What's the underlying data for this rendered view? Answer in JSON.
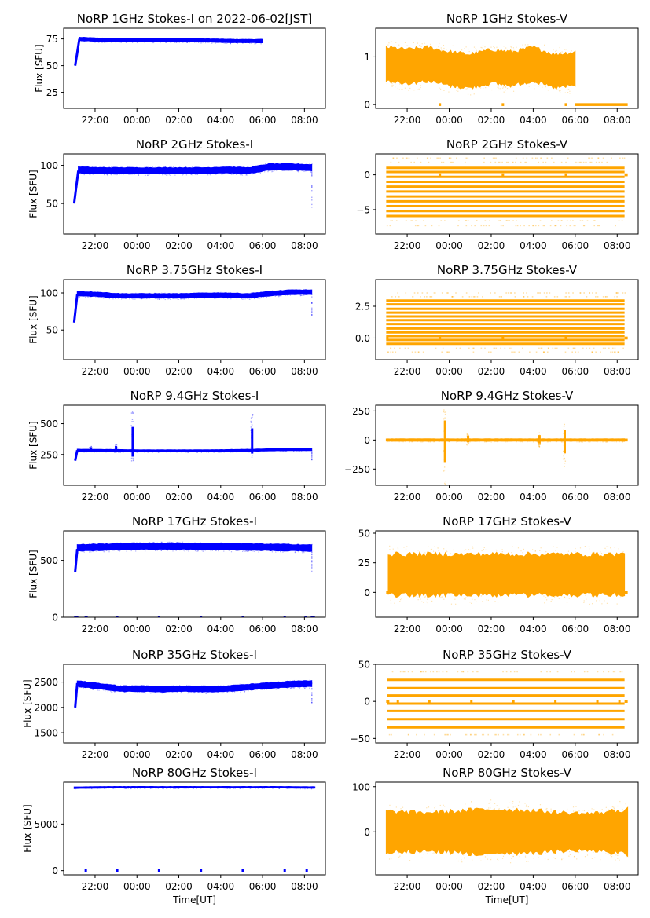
{
  "chart_data": [
    {
      "type": "scatter",
      "id": "p1i",
      "column": "left",
      "row": 1,
      "title": "NoRP 1GHz Stokes-I on 2022-06-02[JST]",
      "ylabel": "Flux [SFU]",
      "xlabel": "",
      "color": "#0000ff",
      "xlim": [
        -3.5,
        9.0
      ],
      "ylim": [
        10,
        85
      ],
      "xticks": [
        -2,
        0,
        2,
        4,
        6,
        8
      ],
      "xtick_labels": [
        "22:00",
        "00:00",
        "02:00",
        "04:00",
        "06:00",
        "08:00"
      ],
      "yticks": [
        25,
        50,
        75
      ],
      "ytick_labels": [
        "25",
        "50",
        "75"
      ],
      "rise": {
        "x": [
          -2.95,
          -2.75
        ],
        "y": [
          50,
          75
        ]
      },
      "band": {
        "x": [
          -2.75,
          6.0
        ],
        "center": [
          75,
          74,
          74,
          74,
          74,
          73.5,
          73,
          73
        ],
        "halfwidth": 1.5
      },
      "outliers": [],
      "zero_marks": []
    },
    {
      "type": "scatter",
      "id": "p1v",
      "column": "right",
      "row": 1,
      "title": "NoRP 1GHz Stokes-V",
      "ylabel": "",
      "xlabel": "",
      "color": "#ffa500",
      "xlim": [
        -3.5,
        9.0
      ],
      "ylim": [
        -0.08,
        1.6
      ],
      "xticks": [
        -2,
        0,
        2,
        4,
        6,
        8
      ],
      "xtick_labels": [
        "22:00",
        "00:00",
        "02:00",
        "04:00",
        "06:00",
        "08:00"
      ],
      "yticks": [
        0,
        1
      ],
      "ytick_labels": [
        "0",
        "1"
      ],
      "band": {
        "x": [
          -3.0,
          6.0
        ],
        "center": [
          0.85,
          0.8,
          0.85,
          0.75,
          0.7,
          0.8,
          0.75,
          0.85,
          0.7,
          0.75
        ],
        "halfwidth": 0.35
      },
      "zero_marks": [
        [
          -0.5,
          -0.4
        ],
        [
          2.5,
          2.6
        ],
        [
          5.5,
          5.6
        ],
        [
          6.0,
          8.5
        ]
      ],
      "zero_value": 0
    },
    {
      "type": "scatter",
      "id": "p2i",
      "column": "left",
      "row": 2,
      "title": "NoRP 2GHz Stokes-I",
      "ylabel": "Flux [SFU]",
      "xlabel": "",
      "color": "#0000ff",
      "xlim": [
        -3.5,
        9.0
      ],
      "ylim": [
        10,
        115
      ],
      "xticks": [
        -2,
        0,
        2,
        4,
        6,
        8
      ],
      "xtick_labels": [
        "22:00",
        "00:00",
        "02:00",
        "04:00",
        "06:00",
        "08:00"
      ],
      "yticks": [
        50,
        100
      ],
      "ytick_labels": [
        "50",
        "100"
      ],
      "rise": {
        "x": [
          -3.0,
          -2.8
        ],
        "y": [
          50,
          93
        ]
      },
      "band": {
        "x": [
          -2.8,
          8.35
        ],
        "center": [
          94,
          93,
          93,
          93,
          93,
          93,
          93,
          94,
          93,
          98,
          98,
          97
        ],
        "halfwidth": 4
      },
      "dropout": {
        "x": 8.35,
        "y": [
          45,
          95
        ]
      },
      "zero_marks": []
    },
    {
      "type": "scatter",
      "id": "p2v",
      "column": "right",
      "row": 2,
      "title": "NoRP 2GHz Stokes-V",
      "ylabel": "",
      "xlabel": "",
      "color": "#ffa500",
      "xlim": [
        -3.5,
        9.0
      ],
      "ylim": [
        -8.5,
        3.0
      ],
      "xticks": [
        -2,
        0,
        2,
        4,
        6,
        8
      ],
      "xtick_labels": [
        "22:00",
        "00:00",
        "02:00",
        "04:00",
        "06:00",
        "08:00"
      ],
      "yticks": [
        -5,
        0
      ],
      "ytick_labels": [
        "−5",
        "0"
      ],
      "levels": {
        "x": [
          -3.0,
          8.35
        ],
        "values": [
          1.0,
          0.4,
          -0.3,
          -1.0,
          -1.7,
          -2.4,
          -3.1,
          -3.8,
          -4.5,
          -5.2,
          -5.9
        ],
        "faint": [
          1.8,
          -6.6,
          2.4,
          -7.3
        ]
      },
      "zero_marks": [
        [
          -0.5,
          -0.4
        ],
        [
          2.5,
          2.6
        ],
        [
          5.5,
          5.6
        ],
        [
          8.35,
          8.5
        ]
      ],
      "zero_value": 0
    },
    {
      "type": "scatter",
      "id": "p3i",
      "column": "left",
      "row": 3,
      "title": "NoRP 3.75GHz Stokes-I",
      "ylabel": "Flux [SFU]",
      "xlabel": "",
      "color": "#0000ff",
      "xlim": [
        -3.5,
        9.0
      ],
      "ylim": [
        10,
        118
      ],
      "xticks": [
        -2,
        0,
        2,
        4,
        6,
        8
      ],
      "xtick_labels": [
        "22:00",
        "00:00",
        "02:00",
        "04:00",
        "06:00",
        "08:00"
      ],
      "yticks": [
        50,
        100
      ],
      "ytick_labels": [
        "50",
        "100"
      ],
      "rise": {
        "x": [
          -3.0,
          -2.85
        ],
        "y": [
          60,
          98
        ]
      },
      "band": {
        "x": [
          -2.85,
          8.35
        ],
        "center": [
          99,
          98,
          96,
          96,
          96,
          96,
          97,
          97,
          96,
          99,
          101,
          101
        ],
        "halfwidth": 3
      },
      "dropout": {
        "x": 8.35,
        "y": [
          60,
          100
        ]
      },
      "zero_marks": []
    },
    {
      "type": "scatter",
      "id": "p3v",
      "column": "right",
      "row": 3,
      "title": "NoRP 3.75GHz Stokes-V",
      "ylabel": "",
      "xlabel": "",
      "color": "#ffa500",
      "xlim": [
        -3.5,
        9.0
      ],
      "ylim": [
        -1.7,
        4.6
      ],
      "xticks": [
        -2,
        0,
        2,
        4,
        6,
        8
      ],
      "xtick_labels": [
        "22:00",
        "00:00",
        "02:00",
        "04:00",
        "06:00",
        "08:00"
      ],
      "yticks": [
        0.0,
        2.5
      ],
      "ytick_labels": [
        "0.0",
        "2.5"
      ],
      "levels": {
        "x": [
          -3.0,
          8.35
        ],
        "values": [
          2.95,
          2.65,
          2.3,
          2.0,
          1.7,
          1.4,
          1.1,
          0.75,
          0.45,
          0.15,
          -0.15,
          -0.45
        ],
        "faint": [
          -0.8,
          3.25,
          -1.1,
          3.55
        ]
      },
      "zero_marks": [
        [
          -3.0,
          -2.9
        ],
        [
          -0.5,
          -0.4
        ],
        [
          2.5,
          2.6
        ],
        [
          5.5,
          5.6
        ],
        [
          8.35,
          8.5
        ]
      ],
      "zero_value": 0
    },
    {
      "type": "scatter",
      "id": "p4i",
      "column": "left",
      "row": 4,
      "title": "NoRP 9.4GHz Stokes-I",
      "ylabel": "Flux [SFU]",
      "xlabel": "",
      "color": "#0000ff",
      "xlim": [
        -3.5,
        9.0
      ],
      "ylim": [
        0,
        650
      ],
      "xticks": [
        -2,
        0,
        2,
        4,
        6,
        8
      ],
      "xtick_labels": [
        "22:00",
        "00:00",
        "02:00",
        "04:00",
        "06:00",
        "08:00"
      ],
      "yticks": [
        250,
        500
      ],
      "ytick_labels": [
        "250",
        "500"
      ],
      "rise": {
        "x": [
          -2.95,
          -2.85
        ],
        "y": [
          200,
          285
        ]
      },
      "band": {
        "x": [
          -2.85,
          8.35
        ],
        "center": [
          285,
          283,
          282,
          280,
          280,
          280,
          280,
          282,
          284,
          288,
          290,
          290
        ],
        "halfwidth": 8
      },
      "spikes": [
        {
          "x": -0.2,
          "ymin": 180,
          "ymax": 600
        },
        {
          "x": 5.5,
          "ymin": 230,
          "ymax": 580
        },
        {
          "x": -1.0,
          "ymin": 270,
          "ymax": 340
        },
        {
          "x": -2.2,
          "ymin": 275,
          "ymax": 320
        }
      ],
      "dropout": {
        "x": 8.35,
        "y": [
          200,
          290
        ]
      },
      "zero_marks": []
    },
    {
      "type": "scatter",
      "id": "p4v",
      "column": "right",
      "row": 4,
      "title": "NoRP 9.4GHz Stokes-V",
      "ylabel": "",
      "xlabel": "",
      "color": "#ffa500",
      "xlim": [
        -3.5,
        9.0
      ],
      "ylim": [
        -390,
        300
      ],
      "xticks": [
        -2,
        0,
        2,
        4,
        6,
        8
      ],
      "xtick_labels": [
        "22:00",
        "00:00",
        "02:00",
        "04:00",
        "06:00",
        "08:00"
      ],
      "yticks": [
        -250,
        0,
        250
      ],
      "ytick_labels": [
        "−250",
        "0",
        "250"
      ],
      "band": {
        "x": [
          -3.0,
          8.35
        ],
        "center": [
          0,
          0,
          0,
          0,
          0,
          0
        ],
        "halfwidth": 10
      },
      "spikes": [
        {
          "x": -0.2,
          "ymin": -380,
          "ymax": 280
        },
        {
          "x": 5.5,
          "ymin": -230,
          "ymax": 140
        },
        {
          "x": 0.9,
          "ymin": -40,
          "ymax": 60
        },
        {
          "x": 4.3,
          "ymin": -60,
          "ymax": 70
        }
      ],
      "zero_marks": [
        [
          8.35,
          8.5
        ]
      ],
      "zero_value": 0
    },
    {
      "type": "scatter",
      "id": "p5i",
      "column": "left",
      "row": 5,
      "title": "NoRP 17GHz Stokes-I",
      "ylabel": "Flux [SFU]",
      "xlabel": "",
      "color": "#0000ff",
      "xlim": [
        -3.5,
        9.0
      ],
      "ylim": [
        0,
        760
      ],
      "xticks": [
        -2,
        0,
        2,
        4,
        6,
        8
      ],
      "xtick_labels": [
        "22:00",
        "00:00",
        "02:00",
        "04:00",
        "06:00",
        "08:00"
      ],
      "yticks": [
        0,
        500
      ],
      "ytick_labels": [
        "0",
        "500"
      ],
      "rise": {
        "x": [
          -2.95,
          -2.85
        ],
        "y": [
          400,
          600
        ]
      },
      "band": {
        "x": [
          -2.85,
          8.35
        ],
        "center": [
          610,
          615,
          620,
          625,
          625,
          625,
          622,
          620,
          618,
          615,
          612,
          608
        ],
        "halfwidth": 28
      },
      "dropout": {
        "x": 8.35,
        "y": [
          400,
          600
        ]
      },
      "zero_marks": [
        [
          -3.0,
          -2.8
        ],
        [
          -2.5,
          -2.35
        ],
        [
          -1.0,
          -0.9
        ],
        [
          1.0,
          1.1
        ],
        [
          3.0,
          3.1
        ],
        [
          5.0,
          5.1
        ],
        [
          7.0,
          7.1
        ],
        [
          8.0,
          8.1
        ],
        [
          8.3,
          8.5
        ]
      ],
      "zero_value": 0
    },
    {
      "type": "scatter",
      "id": "p5v",
      "column": "right",
      "row": 5,
      "title": "NoRP 17GHz Stokes-V",
      "ylabel": "",
      "xlabel": "",
      "color": "#ffa500",
      "xlim": [
        -3.5,
        9.0
      ],
      "ylim": [
        -21,
        52
      ],
      "xticks": [
        -2,
        0,
        2,
        4,
        6,
        8
      ],
      "xtick_labels": [
        "22:00",
        "00:00",
        "02:00",
        "04:00",
        "06:00",
        "08:00"
      ],
      "yticks": [
        0,
        25,
        50
      ],
      "ytick_labels": [
        "0",
        "25",
        "50"
      ],
      "band": {
        "x": [
          -2.9,
          8.35
        ],
        "center": [
          15,
          15,
          15,
          15,
          15,
          15
        ],
        "halfwidth": 17
      },
      "zero_marks": [
        [
          -3.0,
          -2.9
        ],
        [
          8.35,
          8.5
        ]
      ],
      "zero_value": 0
    },
    {
      "type": "scatter",
      "id": "p6i",
      "column": "left",
      "row": 6,
      "title": "NoRP 35GHz Stokes-I",
      "ylabel": "Flux [SFU]",
      "xlabel": "",
      "color": "#0000ff",
      "xlim": [
        -3.5,
        9.0
      ],
      "ylim": [
        1300,
        2850
      ],
      "xticks": [
        -2,
        0,
        2,
        4,
        6,
        8
      ],
      "xtick_labels": [
        "22:00",
        "00:00",
        "02:00",
        "04:00",
        "06:00",
        "08:00"
      ],
      "yticks": [
        1500,
        2000,
        2500
      ],
      "ytick_labels": [
        "1500",
        "2000",
        "2500"
      ],
      "rise": {
        "x": [
          -2.95,
          -2.85
        ],
        "y": [
          2000,
          2480
        ]
      },
      "band": {
        "x": [
          -2.85,
          8.35
        ],
        "center": [
          2470,
          2420,
          2370,
          2370,
          2360,
          2370,
          2360,
          2370,
          2400,
          2430,
          2460,
          2470
        ],
        "halfwidth": 55
      },
      "dropout": {
        "x": 8.35,
        "y": [
          2050,
          2500
        ]
      },
      "zero_marks": []
    },
    {
      "type": "scatter",
      "id": "p6v",
      "column": "right",
      "row": 6,
      "title": "NoRP 35GHz Stokes-V",
      "ylabel": "",
      "xlabel": "",
      "color": "#ffa500",
      "xlim": [
        -3.5,
        9.0
      ],
      "ylim": [
        -56,
        50
      ],
      "xticks": [
        -2,
        0,
        2,
        4,
        6,
        8
      ],
      "xtick_labels": [
        "22:00",
        "00:00",
        "02:00",
        "04:00",
        "06:00",
        "08:00"
      ],
      "yticks": [
        -50,
        0,
        50
      ],
      "ytick_labels": [
        "−50",
        "0",
        "50"
      ],
      "levels": {
        "x": [
          -2.95,
          8.35
        ],
        "values": [
          29,
          18,
          8,
          -3,
          -13,
          -24,
          -35
        ],
        "faint": [
          40,
          -45
        ]
      },
      "zero_marks": [
        [
          -3.0,
          -2.85
        ],
        [
          -2.5,
          -2.4
        ],
        [
          -1.0,
          -0.9
        ],
        [
          1.0,
          1.1
        ],
        [
          3.0,
          3.1
        ],
        [
          5.0,
          5.1
        ],
        [
          7.0,
          7.1
        ],
        [
          8.05,
          8.15
        ],
        [
          8.35,
          8.5
        ]
      ],
      "zero_value": 0
    },
    {
      "type": "scatter",
      "id": "p7i",
      "column": "left",
      "row": 7,
      "title": "NoRP 80GHz Stokes-I",
      "ylabel": "Flux [SFU]",
      "xlabel": "Time[UT]",
      "color": "#0000ff",
      "xlim": [
        -3.5,
        9.0
      ],
      "ylim": [
        -450,
        9500
      ],
      "xticks": [
        -2,
        0,
        2,
        4,
        6,
        8
      ],
      "xtick_labels": [
        "22:00",
        "00:00",
        "02:00",
        "04:00",
        "06:00",
        "08:00"
      ],
      "yticks": [
        0,
        5000
      ],
      "ytick_labels": [
        "0",
        "5000"
      ],
      "band": {
        "x": [
          -3.0,
          8.5
        ],
        "center": [
          8900,
          8950,
          8950,
          8950,
          8950,
          8950,
          8950,
          8920
        ],
        "halfwidth": 80
      },
      "zero_marks": [
        [
          -2.5,
          -2.4
        ],
        [
          -1.0,
          -0.9
        ],
        [
          1.0,
          1.1
        ],
        [
          3.0,
          3.1
        ],
        [
          5.0,
          5.1
        ],
        [
          7.0,
          7.1
        ],
        [
          8.05,
          8.15
        ]
      ],
      "zero_value": 0
    },
    {
      "type": "scatter",
      "id": "p7v",
      "column": "right",
      "row": 7,
      "title": "NoRP 80GHz Stokes-V",
      "ylabel": "",
      "xlabel": "Time[UT]",
      "color": "#ffa500",
      "xlim": [
        -3.5,
        9.0
      ],
      "ylim": [
        -95,
        110
      ],
      "xticks": [
        -2,
        0,
        2,
        4,
        6,
        8
      ],
      "xtick_labels": [
        "22:00",
        "00:00",
        "02:00",
        "04:00",
        "06:00",
        "08:00"
      ],
      "yticks": [
        0,
        100
      ],
      "ytick_labels": [
        "0",
        "100"
      ],
      "band": {
        "x": [
          -3.0,
          8.5
        ],
        "center": [
          0,
          0,
          0,
          0,
          0,
          0,
          0,
          0
        ],
        "halfwidth": [
          45,
          42,
          45,
          50,
          48,
          42,
          40,
          50
        ]
      },
      "zero_marks": [],
      "zero_value": 0
    }
  ]
}
